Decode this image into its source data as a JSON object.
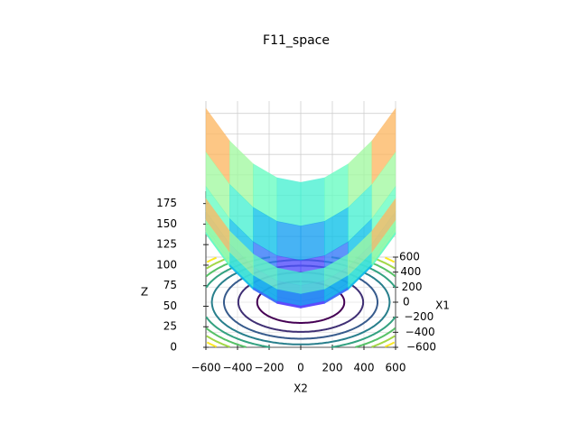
{
  "chart_data": {
    "type": "surface3d",
    "title": "F11_space",
    "xlabel": "X2",
    "ylabel": "X1",
    "zlabel": "Z",
    "x": [
      -600,
      -450,
      -300,
      -150,
      0,
      150,
      300,
      450,
      600
    ],
    "y": [
      -600,
      -450,
      -300,
      -150,
      0,
      150,
      300,
      450,
      600
    ],
    "z": [
      [
        181,
        141.6,
        113.5,
        96.6,
        91,
        96.6,
        113.5,
        141.6,
        181
      ],
      [
        141.6,
        102.2,
        74.1,
        57.2,
        51.6,
        57.2,
        74.1,
        102.2,
        141.6
      ],
      [
        113.5,
        74.1,
        46,
        29.1,
        23.5,
        29.1,
        46,
        74.1,
        113.5
      ],
      [
        96.6,
        57.2,
        29.1,
        12.2,
        6.6,
        12.2,
        29.1,
        57.2,
        96.6
      ],
      [
        91,
        51.6,
        23.5,
        6.6,
        1,
        6.6,
        23.5,
        51.6,
        91
      ],
      [
        96.6,
        57.2,
        29.1,
        12.2,
        6.6,
        12.2,
        29.1,
        57.2,
        96.6
      ],
      [
        113.5,
        74.1,
        46,
        29.1,
        23.5,
        29.1,
        46,
        74.1,
        113.5
      ],
      [
        141.6,
        102.2,
        74.1,
        57.2,
        51.6,
        57.2,
        74.1,
        102.2,
        141.6
      ],
      [
        181,
        141.6,
        113.5,
        96.6,
        91,
        96.6,
        113.5,
        141.6,
        181
      ]
    ],
    "colormap": "rainbow",
    "contour_levels": [
      20,
      40,
      60,
      80,
      100,
      120,
      140,
      160
    ],
    "xlim": [
      -600,
      600
    ],
    "ylim": [
      -600,
      600
    ],
    "zlim": [
      0,
      190
    ],
    "xticks": [
      {
        "value": -600,
        "label": "−600"
      },
      {
        "value": -400,
        "label": "−400"
      },
      {
        "value": -200,
        "label": "−200"
      },
      0,
      200,
      400,
      600
    ],
    "yticks": [
      {
        "value": -600,
        "label": "−600"
      },
      {
        "value": -400,
        "label": "−400"
      },
      {
        "value": -200,
        "label": "−200"
      },
      0,
      200,
      400,
      600
    ],
    "zticks": [
      0,
      25,
      50,
      75,
      100,
      125,
      150,
      175
    ],
    "grid": true
  }
}
